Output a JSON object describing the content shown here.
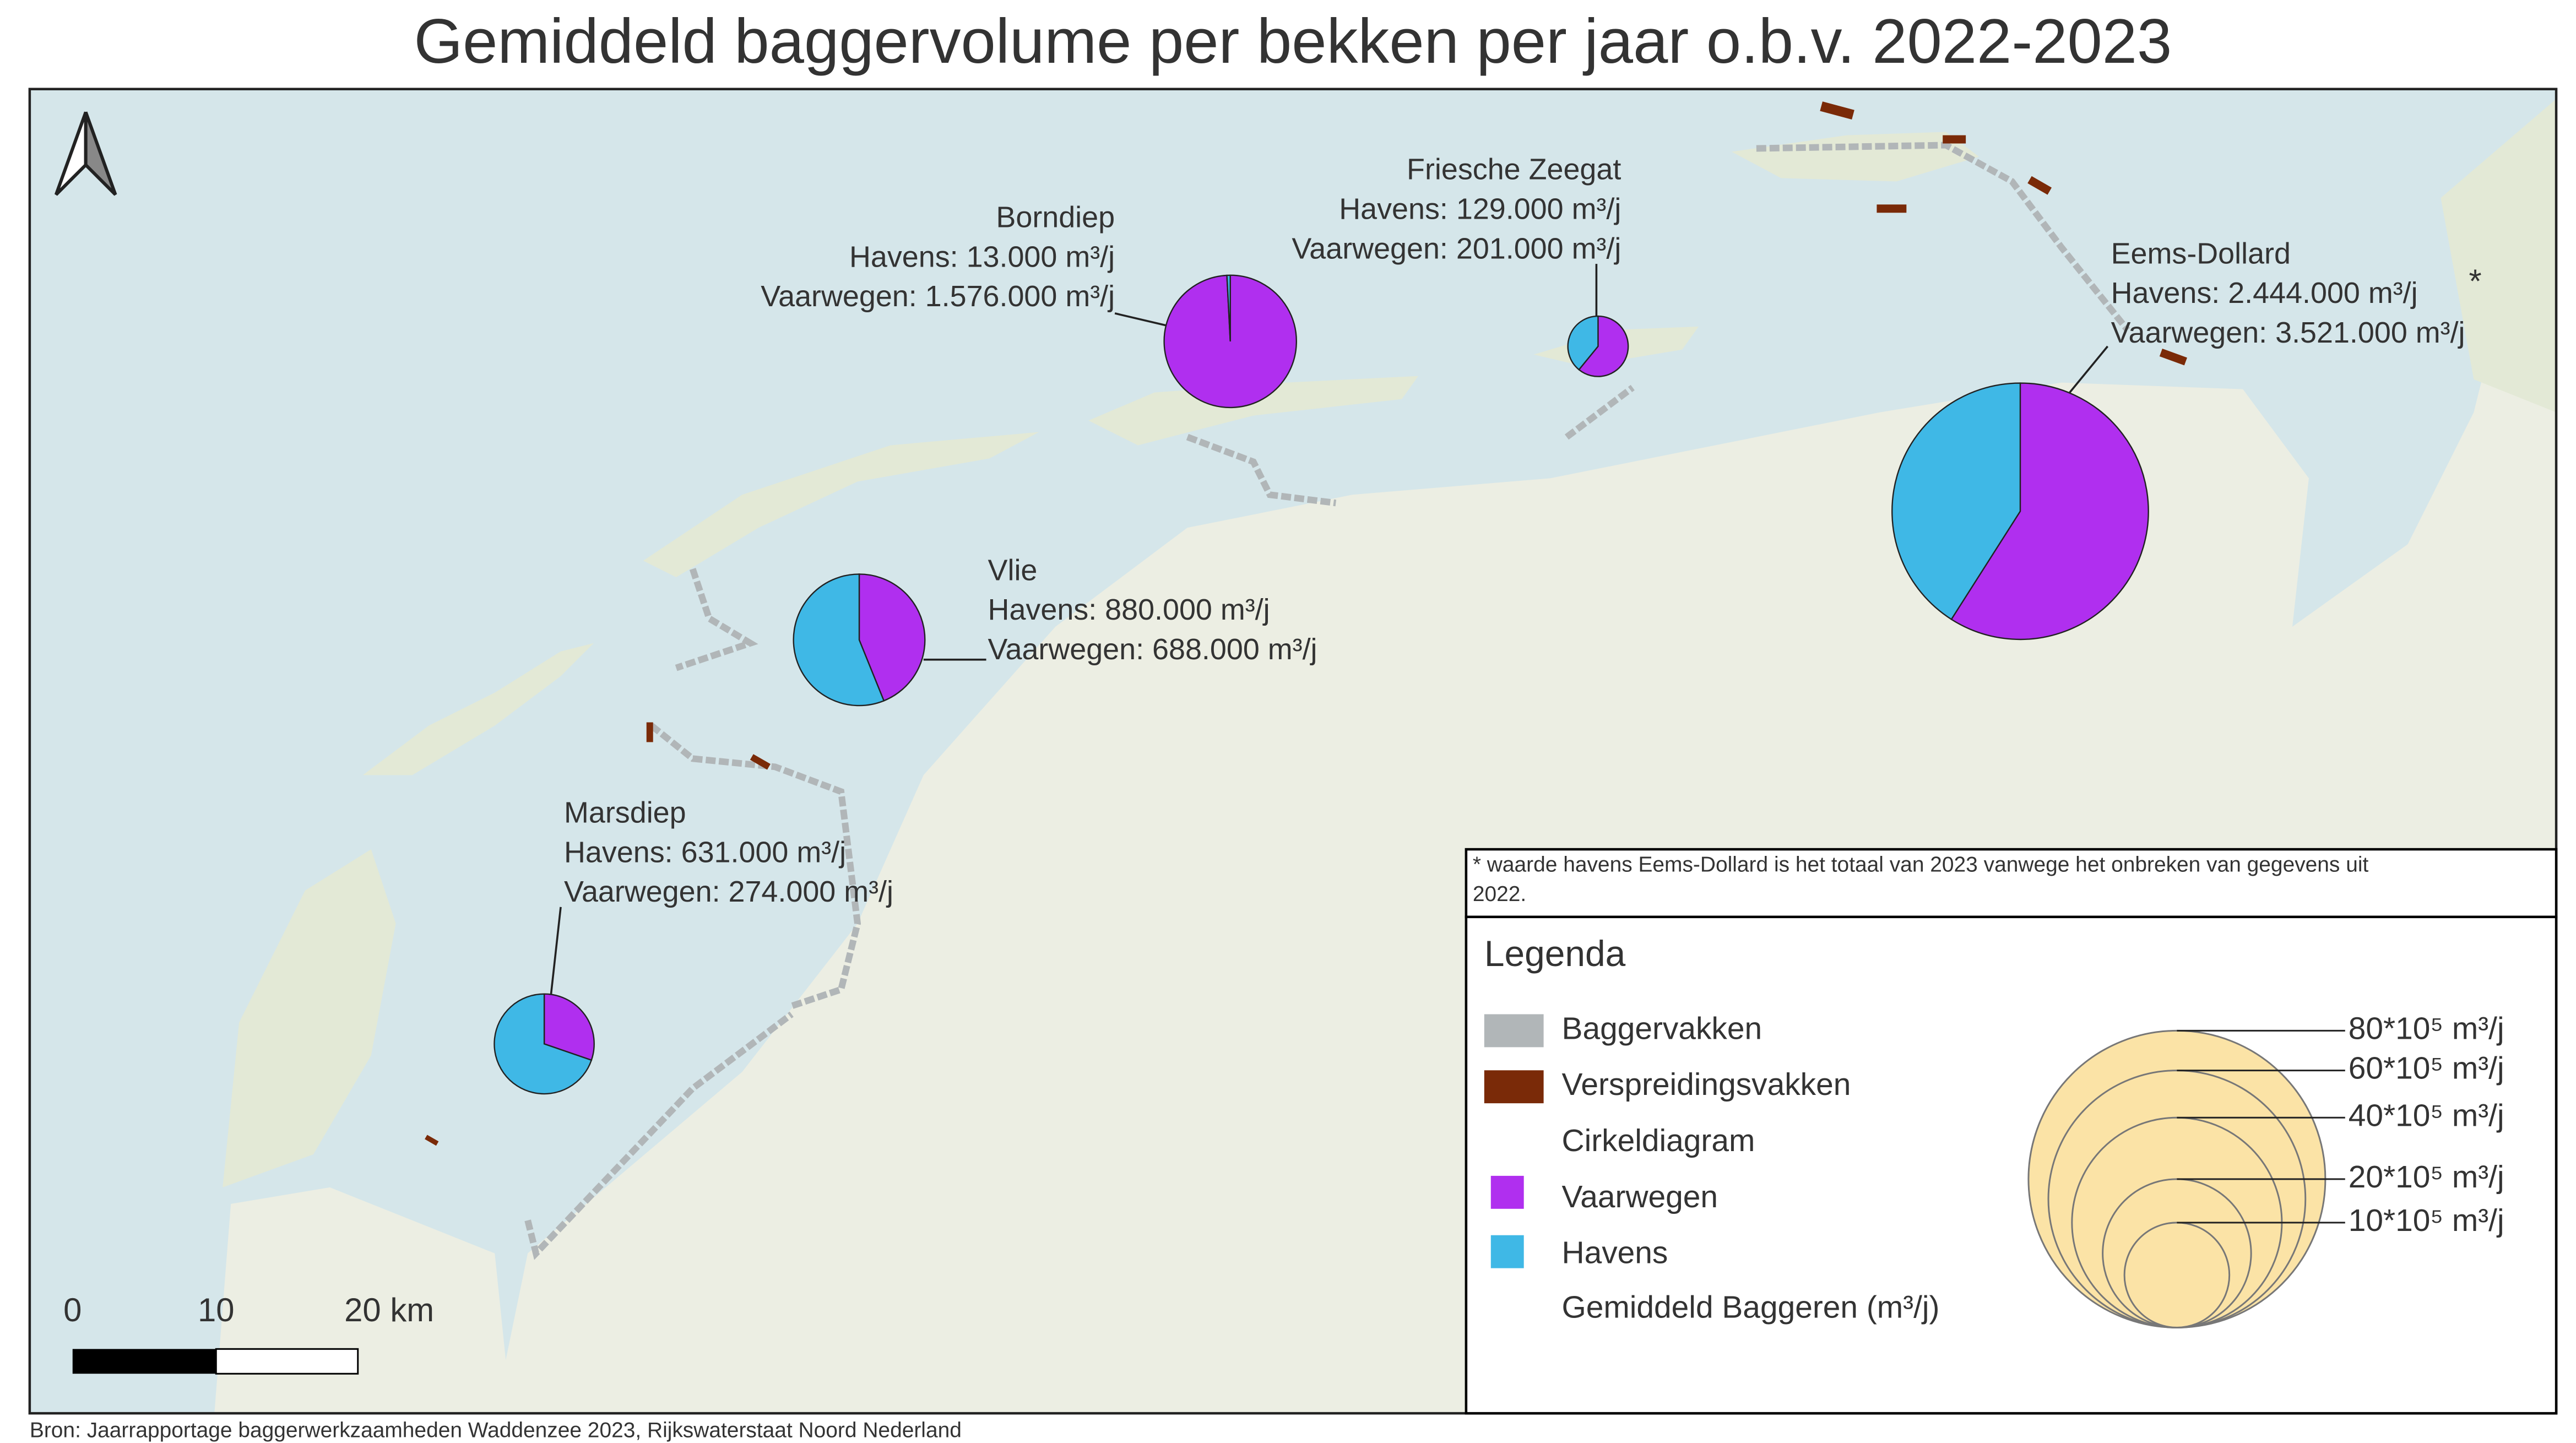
{
  "title": "Gemiddeld baggervolume per bekken per jaar o.b.v. 2022-2023",
  "source": "Bron: Jaarrapportage baggerwerkzaamheden Waddenzee 2023, Rijkswaterstaat Noord Nederland",
  "footnote": [
    "* waarde havens Eems-Dollard is het totaal van 2023 vanwege het onbreken van gegevens uit",
    "2022."
  ],
  "scale_bar": [
    "0",
    "10",
    "20 km"
  ],
  "colors": {
    "havens": "#3fb8e6",
    "vaarwegen": "#b02fef",
    "baggervakken": "#b1b6b8",
    "verspreidingsvakken": "#7a2a08",
    "size_circle": "#fbe3a6"
  },
  "basins": [
    {
      "name": "Borndiep",
      "havens": 13000,
      "havens_label": "Havens: 13.000 m³/j",
      "vaarwegen": 1576000,
      "vaarwegen_label": "Vaarwegen: 1.576.000  m³/j"
    },
    {
      "name": "Friesche Zeegat",
      "havens": 129000,
      "havens_label": "Havens: 129.000 m³/j",
      "vaarwegen": 201000,
      "vaarwegen_label": "Vaarwegen: 201.000  m³/j"
    },
    {
      "name": "Vlie",
      "havens": 880000,
      "havens_label": "Havens: 880.000 m³/j",
      "vaarwegen": 688000,
      "vaarwegen_label": "Vaarwegen: 688.000  m³/j"
    },
    {
      "name": "Marsdiep",
      "havens": 631000,
      "havens_label": "Havens: 631.000 m³/j",
      "vaarwegen": 274000,
      "vaarwegen_label": "Vaarwegen: 274.000  m³/j"
    },
    {
      "name": "Eems-Dollard",
      "havens": 2444000,
      "havens_label": "Havens: 2.444.000 m³/j",
      "note_mark": "*",
      "vaarwegen": 3521000,
      "vaarwegen_label": "Vaarwegen: 3.521.000  m³/j"
    }
  ],
  "legend": {
    "title": "Legenda",
    "items": [
      "Baggervakken",
      "Verspreidingsvakken",
      "Cirkeldiagram",
      "Vaarwegen",
      "Havens",
      "Gemiddeld Baggeren (m³/j)"
    ],
    "sizes": [
      {
        "value": 8000000,
        "label": "80*10⁵ m³/j"
      },
      {
        "value": 6000000,
        "label": "60*10⁵ m³/j"
      },
      {
        "value": 4000000,
        "label": "40*10⁵ m³/j"
      },
      {
        "value": 2000000,
        "label": "20*10⁵ m³/j"
      },
      {
        "value": 1000000,
        "label": "10*10⁵ m³/j"
      }
    ]
  }
}
